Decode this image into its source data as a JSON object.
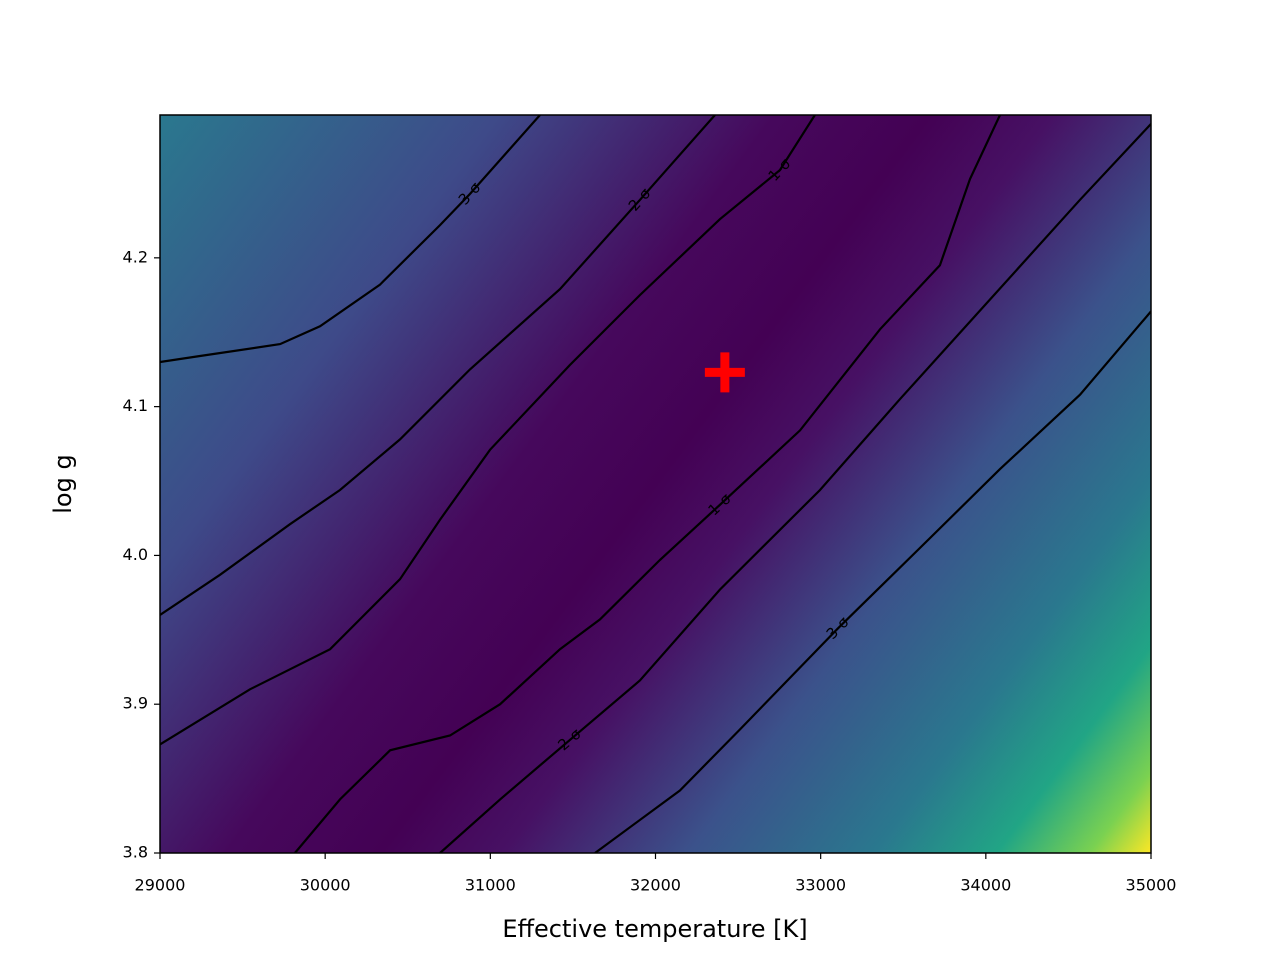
{
  "chart_data": {
    "type": "contour",
    "xlabel": "Effective temperature [K]",
    "ylabel": "log g",
    "xlim": [
      29000,
      35000
    ],
    "ylim": [
      3.8,
      4.296
    ],
    "xticks": [
      29000,
      30000,
      31000,
      32000,
      33000,
      34000,
      35000
    ],
    "yticks": [
      3.8,
      3.9,
      {
        "value": 4,
        "label": "4.0"
      },
      4.1,
      4.2
    ],
    "series": [
      {
        "name": "1-σ",
        "color": "#000000",
        "x": [
          29000,
          29545,
          30030,
          30453,
          30695,
          30998,
          31482,
          31906,
          32390,
          32753,
          32965,
          null,
          29817,
          30090,
          30393,
          30756,
          31059,
          31422,
          31664,
          32027,
          32390,
          32875,
          33359,
          33722,
          33904,
          34086
        ],
        "y": [
          3.873,
          3.91,
          3.937,
          3.984,
          4.024,
          4.071,
          4.128,
          4.175,
          4.226,
          4.259,
          4.296,
          null,
          3.8,
          3.836,
          3.869,
          3.879,
          3.9,
          3.937,
          3.957,
          3.997,
          4.034,
          4.084,
          4.152,
          4.195,
          4.253,
          4.296
        ]
      },
      {
        "name": "2-σ",
        "color": "#000000",
        "x": [
          29000,
          29363,
          29787,
          30090,
          30453,
          30877,
          31422,
          31906,
          32360,
          null,
          30695,
          31059,
          31482,
          31906,
          32390,
          32996,
          33480,
          34025,
          34570,
          35000
        ],
        "y": [
          3.96,
          3.987,
          4.021,
          4.044,
          4.078,
          4.125,
          4.179,
          4.239,
          4.296,
          null,
          3.8,
          3.836,
          3.876,
          3.916,
          3.977,
          4.044,
          4.105,
          4.172,
          4.239,
          4.29
        ]
      },
      {
        "name": "3-σ",
        "color": "#000000",
        "x": [
          29000,
          29242,
          29727,
          29969,
          30332,
          30695,
          30877,
          31301,
          null,
          31634,
          32148,
          32511,
          33105,
          33601,
          34086,
          34570,
          35000
        ],
        "y": [
          4.13,
          4.134,
          4.142,
          4.154,
          4.182,
          4.222,
          4.243,
          4.296,
          null,
          3.8,
          3.842,
          3.883,
          3.951,
          4.005,
          4.058,
          4.108,
          4.164
        ]
      }
    ],
    "marker": {
      "x": 32420,
      "y": 4.123,
      "color": "#ff0000"
    }
  }
}
